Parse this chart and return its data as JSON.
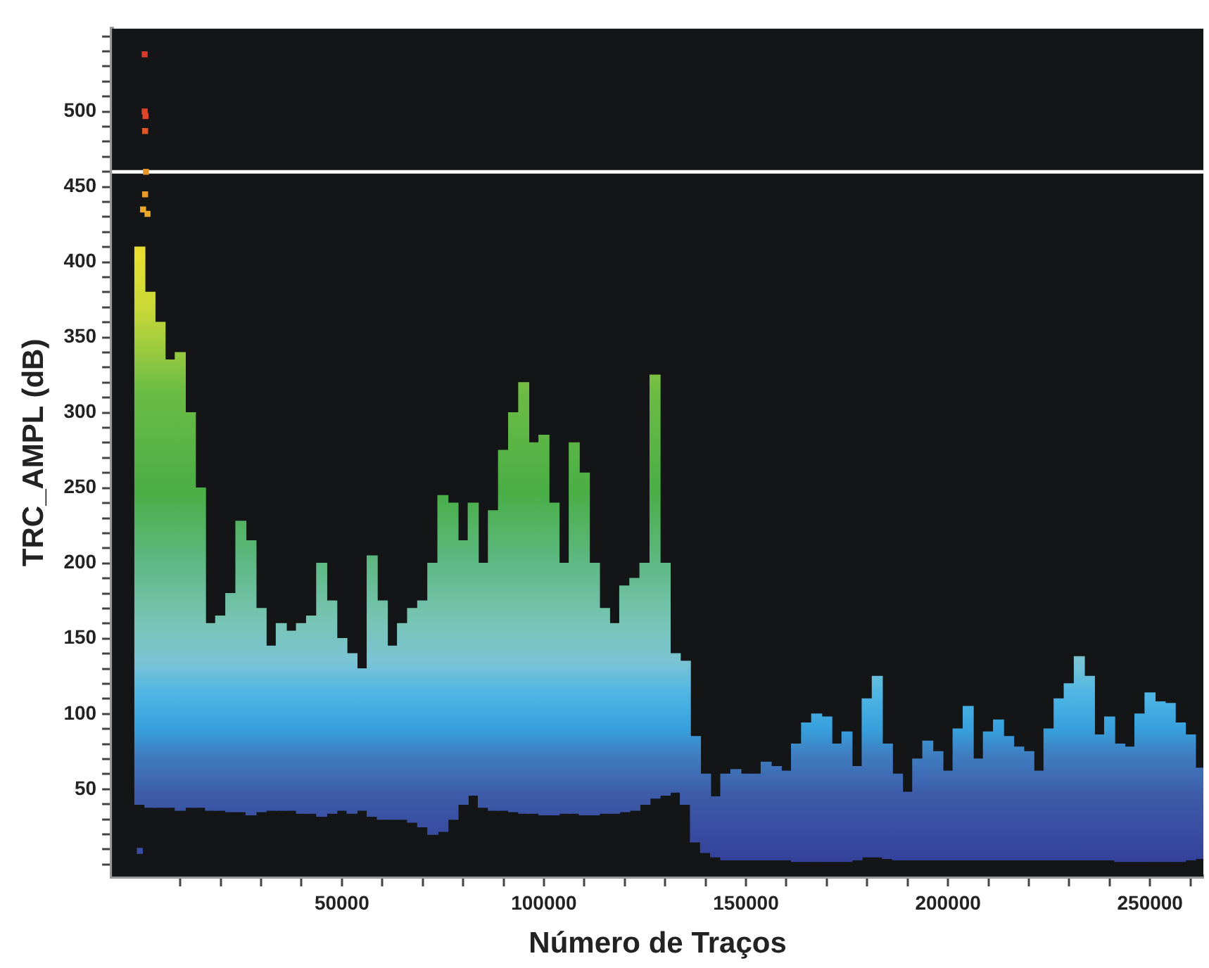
{
  "chart_data": {
    "type": "bar",
    "xlabel": "Número de Traços",
    "ylabel": "TRC_AMPL (dB)",
    "xlim": [
      -6900,
      263200
    ],
    "xticks": [
      {
        "value": 10000,
        "label": null
      },
      {
        "value": 20000,
        "label": null
      },
      {
        "value": 30000,
        "label": null
      },
      {
        "value": 40000,
        "label": null
      },
      50000,
      {
        "value": 60000,
        "label": null
      },
      {
        "value": 70000,
        "label": null
      },
      {
        "value": 80000,
        "label": null
      },
      {
        "value": 90000,
        "label": null
      },
      100000,
      {
        "value": 110000,
        "label": null
      },
      {
        "value": 120000,
        "label": null
      },
      {
        "value": 130000,
        "label": null
      },
      {
        "value": 140000,
        "label": null
      },
      150000,
      {
        "value": 160000,
        "label": null
      },
      {
        "value": 170000,
        "label": null
      },
      {
        "value": 180000,
        "label": null
      },
      {
        "value": 190000,
        "label": null
      },
      200000,
      {
        "value": 210000,
        "label": null
      },
      {
        "value": 220000,
        "label": null
      },
      {
        "value": 230000,
        "label": null
      },
      {
        "value": 240000,
        "label": null
      },
      250000,
      {
        "value": 260000,
        "label": null
      }
    ],
    "ylim": [
      -8,
      555
    ],
    "yticks": [
      {
        "value": 0,
        "label": null
      },
      {
        "value": 10,
        "label": null
      },
      {
        "value": 20,
        "label": null
      },
      {
        "value": 30,
        "label": null
      },
      {
        "value": 40,
        "label": null
      },
      50,
      {
        "value": 60,
        "label": null
      },
      {
        "value": 70,
        "label": null
      },
      {
        "value": 80,
        "label": null
      },
      {
        "value": 90,
        "label": null
      },
      100,
      {
        "value": 110,
        "label": null
      },
      {
        "value": 120,
        "label": null
      },
      {
        "value": 130,
        "label": null
      },
      {
        "value": 140,
        "label": null
      },
      150,
      {
        "value": 160,
        "label": null
      },
      {
        "value": 170,
        "label": null
      },
      {
        "value": 180,
        "label": null
      },
      {
        "value": 190,
        "label": null
      },
      200,
      {
        "value": 210,
        "label": null
      },
      {
        "value": 220,
        "label": null
      },
      {
        "value": 230,
        "label": null
      },
      {
        "value": 240,
        "label": null
      },
      250,
      {
        "value": 260,
        "label": null
      },
      {
        "value": 270,
        "label": null
      },
      {
        "value": 280,
        "label": null
      },
      {
        "value": 290,
        "label": null
      },
      300,
      {
        "value": 310,
        "label": null
      },
      {
        "value": 320,
        "label": null
      },
      {
        "value": 330,
        "label": null
      },
      {
        "value": 340,
        "label": null
      },
      350,
      {
        "value": 360,
        "label": null
      },
      {
        "value": 370,
        "label": null
      },
      {
        "value": 380,
        "label": null
      },
      {
        "value": 390,
        "label": null
      },
      400,
      {
        "value": 410,
        "label": null
      },
      {
        "value": 420,
        "label": null
      },
      {
        "value": 430,
        "label": null
      },
      {
        "value": 440,
        "label": null
      },
      450,
      {
        "value": 460,
        "label": null
      },
      {
        "value": 470,
        "label": null
      },
      {
        "value": 480,
        "label": null
      },
      {
        "value": 490,
        "label": null
      },
      500,
      {
        "value": 510,
        "label": null
      },
      {
        "value": 520,
        "label": null
      },
      {
        "value": 530,
        "label": null
      },
      {
        "value": 540,
        "label": null
      },
      {
        "value": 550,
        "label": null
      }
    ],
    "grid": false,
    "legend": false,
    "marker": "square",
    "ref_lines": [
      {
        "axis": "y",
        "value": 460,
        "color": "#ffffff"
      }
    ],
    "series": [
      {
        "x": [
          0,
          2500,
          5000,
          7500,
          10000,
          12500,
          15000,
          17500,
          20000,
          22500,
          25000,
          27500,
          30000,
          32500,
          35000,
          37500,
          40000,
          42500,
          45000,
          47500,
          50000,
          52500,
          55000,
          57500,
          60000,
          62500,
          65000,
          67500,
          70000,
          72500,
          75000,
          77500,
          80000,
          82500,
          85000,
          87500,
          90000,
          92500,
          95000,
          97500,
          100000,
          102500,
          105000,
          107500,
          110000,
          112500,
          115000,
          117500,
          120000,
          122500,
          125000,
          127500,
          130000,
          132500,
          135000,
          137500,
          140000,
          142500,
          145000,
          147500,
          150000,
          152500,
          155000,
          157500,
          160000,
          162500,
          165000,
          167500,
          170000,
          172500,
          175000,
          177500,
          180000,
          182500,
          185000,
          187500,
          190000,
          192500,
          195000,
          197500,
          200000,
          202500,
          205000,
          207500,
          210000,
          212500,
          215000,
          217500,
          220000,
          222500,
          225000,
          227500,
          230000,
          232500,
          235000,
          237500,
          240000,
          242500,
          245000,
          247500,
          250000,
          252500,
          255000,
          257500,
          260000,
          262500
        ],
        "base": [
          40,
          38,
          38,
          38,
          36,
          38,
          38,
          36,
          36,
          35,
          35,
          33,
          35,
          36,
          36,
          36,
          34,
          34,
          32,
          34,
          36,
          34,
          36,
          32,
          30,
          30,
          30,
          28,
          25,
          20,
          22,
          30,
          40,
          46,
          38,
          36,
          36,
          35,
          34,
          34,
          33,
          33,
          34,
          34,
          33,
          33,
          34,
          34,
          35,
          36,
          40,
          44,
          46,
          48,
          40,
          15,
          8,
          5,
          3,
          3,
          3,
          3,
          3,
          3,
          3,
          2,
          2,
          2,
          2,
          2,
          2,
          3,
          5,
          5,
          4,
          3,
          3,
          3,
          3,
          3,
          3,
          3,
          3,
          3,
          3,
          3,
          3,
          3,
          3,
          3,
          3,
          3,
          3,
          3,
          3,
          3,
          3,
          2,
          2,
          2,
          2,
          2,
          2,
          2,
          3,
          4
        ],
        "values": [
          370,
          342,
          322,
          297,
          304,
          262,
          212,
          124,
          129,
          145,
          193,
          182,
          135,
          109,
          124,
          119,
          126,
          131,
          168,
          141,
          114,
          106,
          94,
          173,
          145,
          115,
          130,
          142,
          150,
          180,
          223,
          210,
          175,
          194,
          162,
          199,
          239,
          265,
          286,
          246,
          252,
          207,
          166,
          246,
          227,
          167,
          136,
          126,
          150,
          154,
          160,
          281,
          154,
          92,
          95,
          70,
          52,
          40,
          57,
          60,
          57,
          57,
          65,
          62,
          59,
          78,
          92,
          98,
          96,
          78,
          86,
          62,
          105,
          120,
          76,
          57,
          45,
          67,
          79,
          72,
          59,
          87,
          102,
          67,
          85,
          93,
          82,
          75,
          72,
          59,
          87,
          107,
          117,
          135,
          122,
          83,
          95,
          78,
          76,
          98,
          112,
          106,
          105,
          92,
          83,
          60
        ]
      },
      {
        "type": "scatter",
        "x": [
          1200,
          1200,
          1400,
          1300,
          1500,
          1300,
          800,
          1900,
          0
        ],
        "values": [
          538,
          500,
          497,
          487,
          460,
          445,
          435,
          432,
          9
        ],
        "colors": [
          "#d83a2a",
          "#e0452a",
          "#e0452a",
          "#e0582a",
          "#e8962a",
          "#e89a2a",
          "#eba82a",
          "#eba82a",
          "#3b4fa0"
        ]
      }
    ]
  }
}
